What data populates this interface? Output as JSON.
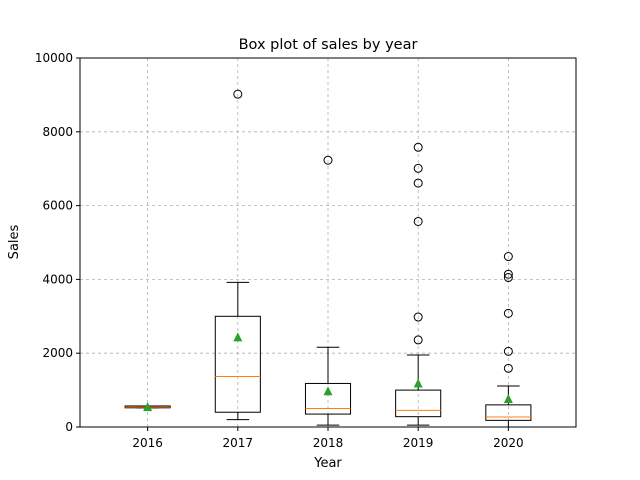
{
  "chart_data": {
    "type": "box",
    "title": "Box plot of sales by year",
    "xlabel": "Year",
    "ylabel": "Sales",
    "ylim": [
      0,
      10000
    ],
    "yticks": [
      0,
      2000,
      4000,
      6000,
      8000,
      10000
    ],
    "ytick_labels": [
      "0",
      "2000",
      "4000",
      "6000",
      "8000",
      "10000"
    ],
    "grid": true,
    "categories": [
      "2016",
      "2017",
      "2018",
      "2019",
      "2020"
    ],
    "boxes": [
      {
        "category": "2016",
        "whisker_low": 520,
        "q1": 520,
        "median": 540,
        "q3": 570,
        "whisker_high": 570,
        "mean": 540,
        "outliers": []
      },
      {
        "category": "2017",
        "whisker_low": 200,
        "q1": 400,
        "median": 1370,
        "q3": 3000,
        "whisker_high": 3920,
        "mean": 2430,
        "outliers": [
          9020
        ]
      },
      {
        "category": "2018",
        "whisker_low": 50,
        "q1": 350,
        "median": 500,
        "q3": 1180,
        "whisker_high": 2160,
        "mean": 970,
        "outliers": [
          7230
        ]
      },
      {
        "category": "2019",
        "whisker_low": 50,
        "q1": 280,
        "median": 450,
        "q3": 1000,
        "whisker_high": 1950,
        "mean": 1180,
        "outliers": [
          2360,
          2980,
          5570,
          6610,
          7010,
          7580
        ]
      },
      {
        "category": "2020",
        "whisker_low": 0,
        "q1": 180,
        "median": 270,
        "q3": 600,
        "whisker_high": 1110,
        "mean": 760,
        "outliers": [
          1590,
          2050,
          3080,
          4050,
          4140,
          4620
        ]
      }
    ],
    "colors": {
      "box": "#000000",
      "median": "#ff7f0e",
      "mean": "#2ca02c",
      "grid": "#b0b0b0"
    }
  }
}
